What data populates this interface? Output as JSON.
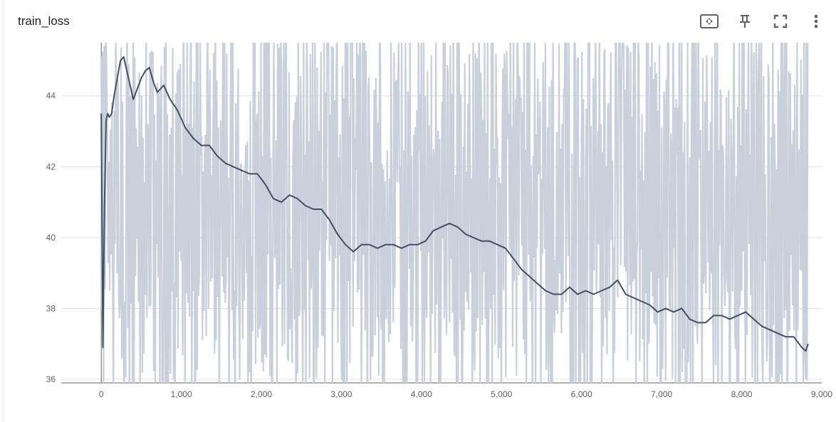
{
  "panel": {
    "title": "train_loss",
    "toolbar": [
      {
        "name": "fit-domain-icon"
      },
      {
        "name": "pin-icon"
      },
      {
        "name": "fullscreen-icon"
      },
      {
        "name": "more-vert-icon"
      }
    ]
  },
  "chart_data": {
    "type": "line",
    "title": "train_loss",
    "xlabel": "",
    "ylabel": "",
    "xlim": [
      -500,
      9000
    ],
    "ylim": [
      35.9,
      45.5
    ],
    "x_ticks": [
      0,
      1000,
      2000,
      3000,
      4000,
      5000,
      6000,
      7000,
      8000,
      9000
    ],
    "x_tick_labels": [
      "0",
      "1,000",
      "2,000",
      "3,000",
      "4,000",
      "5,000",
      "6,000",
      "7,000",
      "8,000",
      "9,000"
    ],
    "y_ticks": [
      36,
      38,
      40,
      42,
      44
    ],
    "y_tick_labels": [
      "36",
      "38",
      "40",
      "42",
      "44"
    ],
    "grid": true,
    "legend": "none",
    "colors": {
      "smoothed": "#425066",
      "raw": "#c9d0db",
      "grid": "#e0e0e0"
    },
    "series": [
      {
        "role": "smoothed",
        "x": [
          0,
          20,
          40,
          60,
          80,
          100,
          130,
          160,
          200,
          240,
          280,
          320,
          360,
          400,
          450,
          500,
          550,
          600,
          650,
          700,
          780,
          860,
          950,
          1050,
          1150,
          1250,
          1350,
          1450,
          1550,
          1650,
          1750,
          1850,
          1950,
          2050,
          2150,
          2250,
          2350,
          2450,
          2550,
          2650,
          2750,
          2850,
          2950,
          3050,
          3150,
          3250,
          3350,
          3450,
          3550,
          3650,
          3750,
          3850,
          3950,
          4050,
          4150,
          4250,
          4350,
          4450,
          4550,
          4650,
          4750,
          4850,
          4950,
          5050,
          5150,
          5250,
          5350,
          5450,
          5550,
          5650,
          5750,
          5850,
          5950,
          6050,
          6150,
          6250,
          6350,
          6450,
          6550,
          6650,
          6750,
          6850,
          6950,
          7050,
          7150,
          7250,
          7350,
          7450,
          7550,
          7650,
          7750,
          7850,
          7950,
          8050,
          8150,
          8250,
          8350,
          8450,
          8550,
          8650,
          8750,
          8800,
          8830
        ],
        "y": [
          43.5,
          36.9,
          40.9,
          43.3,
          43.5,
          43.4,
          43.5,
          44.0,
          44.5,
          45.0,
          45.1,
          44.7,
          44.3,
          43.9,
          44.2,
          44.5,
          44.7,
          44.8,
          44.4,
          44.1,
          44.3,
          43.9,
          43.6,
          43.1,
          42.8,
          42.6,
          42.6,
          42.3,
          42.1,
          42.0,
          41.9,
          41.8,
          41.8,
          41.5,
          41.1,
          41.0,
          41.2,
          41.1,
          40.9,
          40.8,
          40.8,
          40.5,
          40.1,
          39.8,
          39.6,
          39.8,
          39.8,
          39.7,
          39.8,
          39.8,
          39.7,
          39.8,
          39.8,
          39.9,
          40.2,
          40.3,
          40.4,
          40.3,
          40.1,
          40.0,
          39.9,
          39.9,
          39.8,
          39.7,
          39.4,
          39.1,
          38.9,
          38.7,
          38.5,
          38.4,
          38.4,
          38.6,
          38.4,
          38.5,
          38.4,
          38.5,
          38.6,
          38.8,
          38.4,
          38.3,
          38.2,
          38.1,
          37.9,
          38.0,
          37.9,
          38.0,
          37.7,
          37.6,
          37.6,
          37.8,
          37.8,
          37.7,
          37.8,
          37.9,
          37.7,
          37.5,
          37.4,
          37.3,
          37.2,
          37.2,
          36.9,
          36.8,
          37.0
        ]
      },
      {
        "role": "raw",
        "description": "unsmoothed per-step values, oscillating approximately between 35.9 and 45.5 across steps 0–8830",
        "x_range": [
          0,
          8830
        ],
        "y_range": [
          35.9,
          45.5
        ]
      }
    ]
  }
}
